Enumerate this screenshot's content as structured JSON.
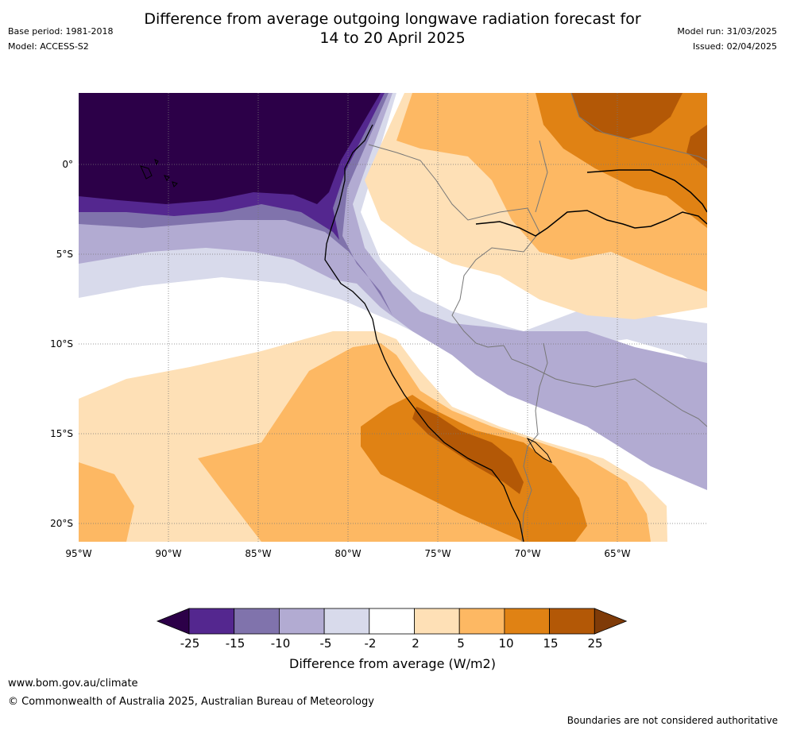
{
  "header": {
    "title_line1": "Difference from average outgoing longwave radiation forecast for",
    "title_line2": "14 to 20 April 2025",
    "base_period": "Base period: 1981-2018",
    "model": "Model: ACCESS-S2",
    "model_run": "Model run: 31/03/2025",
    "issued": "Issued: 02/04/2025"
  },
  "map": {
    "lat_labels": [
      "0°",
      "5°S",
      "10°S",
      "15°S",
      "20°S"
    ],
    "lon_labels": [
      "95°W",
      "90°W",
      "85°W",
      "80°W",
      "75°W",
      "70°W",
      "65°W"
    ]
  },
  "legend": {
    "label": "Difference from average (W/m2)",
    "ticks": [
      "-25",
      "-15",
      "-10",
      "-5",
      "-2",
      "2",
      "5",
      "10",
      "15",
      "25"
    ],
    "colors": [
      "#2c0048",
      "#54278f",
      "#8073ac",
      "#b2abd2",
      "#d8daeb",
      "#ffffff",
      "#fee0b6",
      "#fdb863",
      "#e08214",
      "#b35806",
      "#7f3b08"
    ]
  },
  "footer": {
    "website": "www.bom.gov.au/climate",
    "copyright": "© Commonwealth of Australia 2025, Australian Bureau of Meteorology",
    "disclaimer": "Boundaries are not considered authoritative"
  }
}
